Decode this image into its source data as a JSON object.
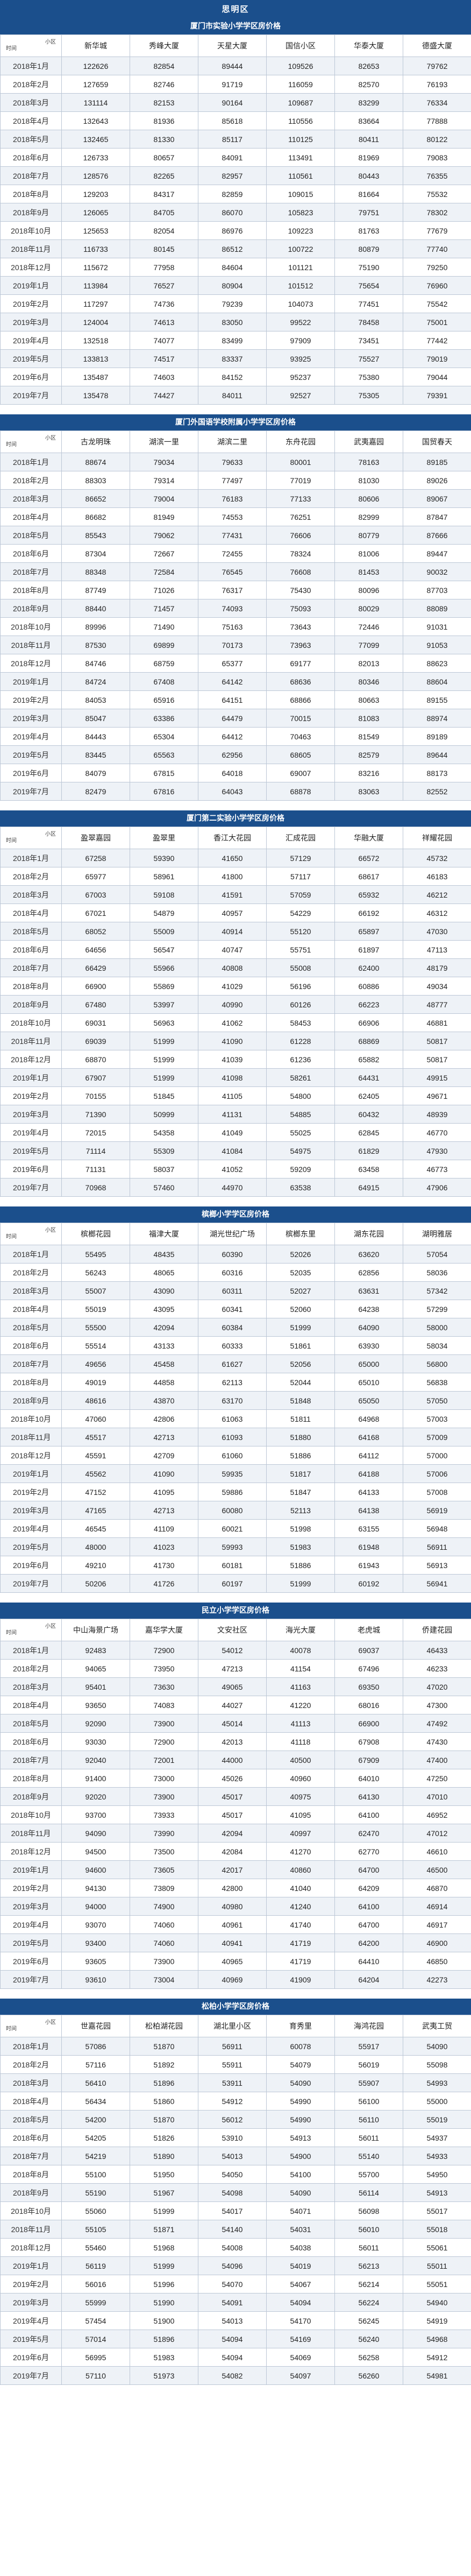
{
  "district": "思明区",
  "corner_header": {
    "top": "小区",
    "bottom": "时间"
  },
  "months": [
    "2018年1月",
    "2018年2月",
    "2018年3月",
    "2018年4月",
    "2018年5月",
    "2018年6月",
    "2018年7月",
    "2018年8月",
    "2018年9月",
    "2018年10月",
    "2018年11月",
    "2018年12月",
    "2019年1月",
    "2019年2月",
    "2019年3月",
    "2019年4月",
    "2019年5月",
    "2019年6月",
    "2019年7月"
  ],
  "sections": [
    {
      "title": "厦门市实验小学学区房价格",
      "columns": [
        "新华城",
        "秀峰大厦",
        "天星大厦",
        "国信小区",
        "华泰大厦",
        "德盛大厦"
      ],
      "rows": [
        [
          "122626",
          "82854",
          "89444",
          "109526",
          "82653",
          "79762"
        ],
        [
          "127659",
          "82746",
          "91719",
          "116059",
          "82570",
          "76193"
        ],
        [
          "131114",
          "82153",
          "90164",
          "109687",
          "83299",
          "76334"
        ],
        [
          "132643",
          "81936",
          "85618",
          "110556",
          "83664",
          "77888"
        ],
        [
          "132465",
          "81330",
          "85117",
          "110125",
          "80411",
          "80122"
        ],
        [
          "126733",
          "80657",
          "84091",
          "113491",
          "81969",
          "79083"
        ],
        [
          "128576",
          "82265",
          "82957",
          "110561",
          "80443",
          "76355"
        ],
        [
          "129203",
          "84317",
          "82859",
          "109015",
          "81664",
          "75532"
        ],
        [
          "126065",
          "84705",
          "86070",
          "105823",
          "79751",
          "78302"
        ],
        [
          "125653",
          "82054",
          "86976",
          "109223",
          "81763",
          "77679"
        ],
        [
          "116733",
          "80145",
          "86512",
          "100722",
          "80879",
          "77740"
        ],
        [
          "115672",
          "77958",
          "84604",
          "101121",
          "75190",
          "79250"
        ],
        [
          "113984",
          "76527",
          "80904",
          "101512",
          "75654",
          "76960"
        ],
        [
          "117297",
          "74736",
          "79239",
          "104073",
          "77451",
          "75542"
        ],
        [
          "124004",
          "74613",
          "83050",
          "99522",
          "78458",
          "75001"
        ],
        [
          "132518",
          "74077",
          "83499",
          "97909",
          "73451",
          "77442"
        ],
        [
          "133813",
          "74517",
          "83337",
          "93925",
          "75527",
          "79019"
        ],
        [
          "135487",
          "74603",
          "84152",
          "95237",
          "75380",
          "79044"
        ],
        [
          "135478",
          "74427",
          "84011",
          "92527",
          "75305",
          "79391"
        ]
      ]
    },
    {
      "title": "厦门外国语学校附属小学学区房价格",
      "columns": [
        "古龙明珠",
        "湖滨一里",
        "湖滨二里",
        "东舟花园",
        "武夷嘉园",
        "国贸春天"
      ],
      "rows": [
        [
          "88674",
          "79034",
          "79633",
          "80001",
          "78163",
          "89185"
        ],
        [
          "88303",
          "79314",
          "77497",
          "77019",
          "81030",
          "89026"
        ],
        [
          "86652",
          "79004",
          "76183",
          "77133",
          "80606",
          "89067"
        ],
        [
          "86682",
          "81949",
          "74553",
          "76251",
          "82999",
          "87847"
        ],
        [
          "85543",
          "79062",
          "77431",
          "76606",
          "80779",
          "87666"
        ],
        [
          "87304",
          "72667",
          "72455",
          "78324",
          "81006",
          "89447"
        ],
        [
          "88348",
          "72584",
          "76545",
          "76608",
          "81453",
          "90032"
        ],
        [
          "87749",
          "71026",
          "76317",
          "75430",
          "80096",
          "87703"
        ],
        [
          "88440",
          "71457",
          "74093",
          "75093",
          "80029",
          "88089"
        ],
        [
          "89996",
          "71490",
          "75163",
          "73643",
          "72446",
          "91031"
        ],
        [
          "87530",
          "69899",
          "70173",
          "73963",
          "77099",
          "91053"
        ],
        [
          "84746",
          "68759",
          "65377",
          "69177",
          "82013",
          "88623"
        ],
        [
          "84724",
          "67408",
          "64142",
          "68636",
          "80346",
          "88604"
        ],
        [
          "84053",
          "65916",
          "64151",
          "68866",
          "80663",
          "89155"
        ],
        [
          "85047",
          "63386",
          "64479",
          "70015",
          "81083",
          "88974"
        ],
        [
          "84443",
          "65304",
          "64412",
          "70463",
          "81549",
          "89189"
        ],
        [
          "83445",
          "65563",
          "62956",
          "68605",
          "82579",
          "89644"
        ],
        [
          "84079",
          "67815",
          "64018",
          "69007",
          "83216",
          "88173"
        ],
        [
          "82479",
          "67816",
          "64043",
          "68878",
          "83063",
          "82552"
        ]
      ]
    },
    {
      "title": "厦门第二实验小学学区房价格",
      "columns": [
        "盈翠嘉园",
        "盈翠里",
        "香江大花园",
        "汇成花园",
        "华融大厦",
        "祥耀花园"
      ],
      "rows": [
        [
          "67258",
          "59390",
          "41650",
          "57129",
          "66572",
          "45732"
        ],
        [
          "65977",
          "58961",
          "41800",
          "57117",
          "68617",
          "46183"
        ],
        [
          "67003",
          "59108",
          "41591",
          "57059",
          "65932",
          "46212"
        ],
        [
          "67021",
          "54879",
          "40957",
          "54229",
          "66192",
          "46312"
        ],
        [
          "68052",
          "55009",
          "40914",
          "55120",
          "65897",
          "47030"
        ],
        [
          "64656",
          "56547",
          "40747",
          "55751",
          "61897",
          "47113"
        ],
        [
          "66429",
          "55966",
          "40808",
          "55008",
          "62400",
          "48179"
        ],
        [
          "66900",
          "55869",
          "41029",
          "56196",
          "60886",
          "49034"
        ],
        [
          "67480",
          "53997",
          "40990",
          "60126",
          "66223",
          "48777"
        ],
        [
          "69031",
          "56963",
          "41062",
          "58453",
          "66906",
          "46881"
        ],
        [
          "69039",
          "51999",
          "41090",
          "61228",
          "68869",
          "50817"
        ],
        [
          "68870",
          "51999",
          "41039",
          "61236",
          "65882",
          "50817"
        ],
        [
          "67907",
          "51999",
          "41098",
          "58261",
          "64431",
          "49915"
        ],
        [
          "70155",
          "51845",
          "41105",
          "54800",
          "62405",
          "49671"
        ],
        [
          "71390",
          "50999",
          "41131",
          "54885",
          "60432",
          "48939"
        ],
        [
          "72015",
          "54358",
          "41049",
          "55025",
          "62845",
          "46770"
        ],
        [
          "71114",
          "55309",
          "41084",
          "54975",
          "61829",
          "47930"
        ],
        [
          "71131",
          "58037",
          "41052",
          "59209",
          "63458",
          "46773"
        ],
        [
          "70968",
          "57460",
          "44970",
          "63538",
          "64915",
          "47906"
        ]
      ]
    },
    {
      "title": "槟榔小学学区房价格",
      "columns": [
        "槟榔花园",
        "福津大厦",
        "湖光世纪广场",
        "槟榔东里",
        "湖东花园",
        "湖明雅居"
      ],
      "rows": [
        [
          "55495",
          "48435",
          "60390",
          "52026",
          "63620",
          "57054"
        ],
        [
          "56243",
          "48065",
          "60316",
          "52035",
          "62856",
          "58036"
        ],
        [
          "55007",
          "43090",
          "60311",
          "52027",
          "63631",
          "57342"
        ],
        [
          "55019",
          "43095",
          "60341",
          "52060",
          "64238",
          "57299"
        ],
        [
          "55500",
          "42094",
          "60384",
          "51999",
          "64090",
          "58000"
        ],
        [
          "55514",
          "43133",
          "60333",
          "51861",
          "63930",
          "58034"
        ],
        [
          "49656",
          "45458",
          "61627",
          "52056",
          "65000",
          "56800"
        ],
        [
          "49019",
          "44858",
          "62113",
          "52044",
          "65010",
          "56838"
        ],
        [
          "48616",
          "43870",
          "63170",
          "51848",
          "65050",
          "57050"
        ],
        [
          "47060",
          "42806",
          "61063",
          "51811",
          "64968",
          "57003"
        ],
        [
          "45517",
          "42713",
          "61093",
          "51880",
          "64168",
          "57009"
        ],
        [
          "45591",
          "42709",
          "61060",
          "51886",
          "64112",
          "57000"
        ],
        [
          "45562",
          "41090",
          "59935",
          "51817",
          "64188",
          "57006"
        ],
        [
          "47152",
          "41095",
          "59886",
          "51847",
          "64133",
          "57008"
        ],
        [
          "47165",
          "42713",
          "60080",
          "52113",
          "64138",
          "56919"
        ],
        [
          "46545",
          "41109",
          "60021",
          "51998",
          "63155",
          "56948"
        ],
        [
          "48000",
          "41023",
          "59993",
          "51983",
          "61948",
          "56911"
        ],
        [
          "49210",
          "41730",
          "60181",
          "51886",
          "61943",
          "56913"
        ],
        [
          "50206",
          "41726",
          "60197",
          "51999",
          "60192",
          "56941"
        ]
      ]
    },
    {
      "title": "民立小学学区房价格",
      "columns": [
        "中山海景广场",
        "嘉华学大厦",
        "文安社区",
        "海光大厦",
        "老虎城",
        "侨建花园"
      ],
      "rows": [
        [
          "92483",
          "72900",
          "54012",
          "40078",
          "69037",
          "46433"
        ],
        [
          "94065",
          "73950",
          "47213",
          "41154",
          "67496",
          "46233"
        ],
        [
          "95401",
          "73630",
          "49065",
          "41163",
          "69350",
          "47020"
        ],
        [
          "93650",
          "74083",
          "44027",
          "41220",
          "68016",
          "47300"
        ],
        [
          "92090",
          "73900",
          "45014",
          "41113",
          "66900",
          "47492"
        ],
        [
          "93030",
          "72900",
          "42013",
          "41118",
          "67908",
          "47430"
        ],
        [
          "92040",
          "72001",
          "44000",
          "40500",
          "67909",
          "47400"
        ],
        [
          "91400",
          "73000",
          "45026",
          "40960",
          "64010",
          "47250"
        ],
        [
          "92020",
          "73900",
          "45017",
          "40975",
          "64130",
          "47010"
        ],
        [
          "93700",
          "73933",
          "45017",
          "41095",
          "64100",
          "46952"
        ],
        [
          "94090",
          "73990",
          "42094",
          "40997",
          "62470",
          "47012"
        ],
        [
          "94500",
          "73500",
          "42084",
          "41270",
          "62770",
          "46610"
        ],
        [
          "94600",
          "73605",
          "42017",
          "40860",
          "64700",
          "46500"
        ],
        [
          "94130",
          "73809",
          "42800",
          "41040",
          "64209",
          "46870"
        ],
        [
          "94000",
          "74900",
          "40980",
          "41240",
          "64100",
          "46914"
        ],
        [
          "93070",
          "74060",
          "40961",
          "41740",
          "64700",
          "46917"
        ],
        [
          "93400",
          "74060",
          "40941",
          "41719",
          "64200",
          "46900"
        ],
        [
          "93605",
          "73900",
          "40965",
          "41719",
          "64410",
          "46850"
        ],
        [
          "93610",
          "73004",
          "40969",
          "41909",
          "64204",
          "42273"
        ]
      ]
    },
    {
      "title": "松柏小学学区房价格",
      "columns": [
        "世嘉花园",
        "松柏湖花园",
        "湖北里小区",
        "育秀里",
        "海鸿花园",
        "武夷工贸"
      ],
      "rows": [
        [
          "57086",
          "51870",
          "56911",
          "60078",
          "55917",
          "54090"
        ],
        [
          "57116",
          "51892",
          "55911",
          "54079",
          "56019",
          "55098"
        ],
        [
          "56410",
          "51896",
          "53911",
          "54090",
          "55907",
          "54993"
        ],
        [
          "56434",
          "51860",
          "54912",
          "54990",
          "56100",
          "55000"
        ],
        [
          "54200",
          "51870",
          "56012",
          "54990",
          "56110",
          "55019"
        ],
        [
          "54205",
          "51826",
          "53910",
          "54913",
          "56011",
          "54937"
        ],
        [
          "54219",
          "51890",
          "54013",
          "54900",
          "55140",
          "54933"
        ],
        [
          "55100",
          "51950",
          "54050",
          "54100",
          "55700",
          "54950"
        ],
        [
          "55190",
          "51967",
          "54098",
          "54090",
          "56114",
          "54913"
        ],
        [
          "55060",
          "51999",
          "54017",
          "54071",
          "56098",
          "55017"
        ],
        [
          "55105",
          "51871",
          "54140",
          "54031",
          "56010",
          "55018"
        ],
        [
          "55460",
          "51968",
          "54008",
          "54038",
          "56011",
          "55061"
        ],
        [
          "56119",
          "51999",
          "54096",
          "54019",
          "56213",
          "55011"
        ],
        [
          "56016",
          "51996",
          "54070",
          "54067",
          "56214",
          "55051"
        ],
        [
          "55999",
          "51990",
          "54091",
          "54094",
          "56224",
          "54940"
        ],
        [
          "57454",
          "51900",
          "54013",
          "54170",
          "56245",
          "54919"
        ],
        [
          "57014",
          "51896",
          "54094",
          "54169",
          "56240",
          "54968"
        ],
        [
          "56995",
          "51983",
          "54094",
          "54069",
          "56258",
          "54912"
        ],
        [
          "57110",
          "51973",
          "54082",
          "54097",
          "56260",
          "54981"
        ]
      ]
    }
  ]
}
